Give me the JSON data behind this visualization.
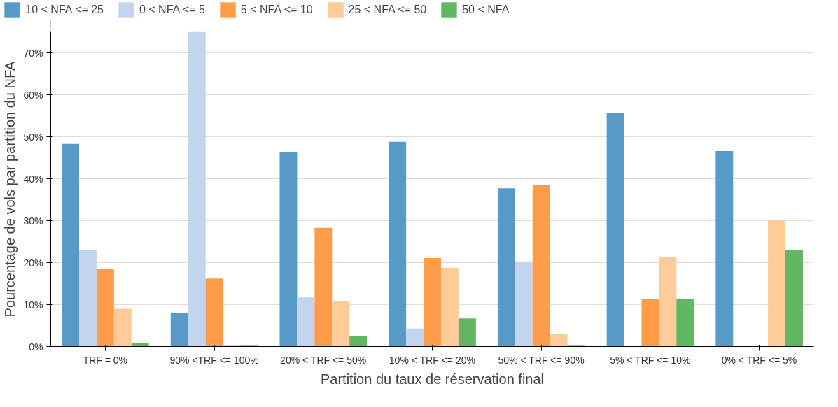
{
  "chart_data": {
    "type": "bar",
    "xlabel": "Partition du taux de réservation final",
    "ylabel": "Pourcentage de vols par partition du NFA",
    "categories": [
      "TRF = 0%",
      "90% <TRF <= 100%",
      "20% < TRF <= 50%",
      "10% < TRF <= 20%",
      "50% < TRF <= 90%",
      "5% < TRF <= 10%",
      "0% < TRF <= 5%"
    ],
    "series": [
      {
        "name": "10 < NFA <= 25",
        "color": "#5799c7",
        "values": [
          48.3,
          8.1,
          46.4,
          48.8,
          37.7,
          55.7,
          46.6
        ]
      },
      {
        "name": "0 < NFA <= 5",
        "color": "#c3d4ee",
        "values": [
          22.9,
          75,
          11.7,
          4.3,
          20.3,
          0,
          0
        ]
      },
      {
        "name": "5 < NFA <= 10",
        "color": "#ff9c49",
        "values": [
          18.6,
          16.2,
          28.3,
          21.1,
          38.6,
          11.3,
          0
        ]
      },
      {
        "name": "25 < NFA <= 50",
        "color": "#ffcb98",
        "values": [
          9.0,
          0.4,
          10.8,
          18.8,
          3.0,
          21.3,
          30.1
        ]
      },
      {
        "name": "50 < NFA",
        "color": "#62b762",
        "values": [
          0.8,
          0.2,
          2.5,
          6.7,
          0.2,
          11.4,
          23.0
        ]
      }
    ],
    "ylim": [
      0,
      75
    ],
    "yticks": [
      {
        "value": 0,
        "label": "0%"
      },
      {
        "value": 10,
        "label": "10%"
      },
      {
        "value": 20,
        "label": "20%"
      },
      {
        "value": 30,
        "label": "30%"
      },
      {
        "value": 40,
        "label": "40%"
      },
      {
        "value": 50,
        "label": "50%"
      },
      {
        "value": 60,
        "label": "60%"
      },
      {
        "value": 70,
        "label": "70%"
      }
    ],
    "grid": "y",
    "legend": "top"
  }
}
